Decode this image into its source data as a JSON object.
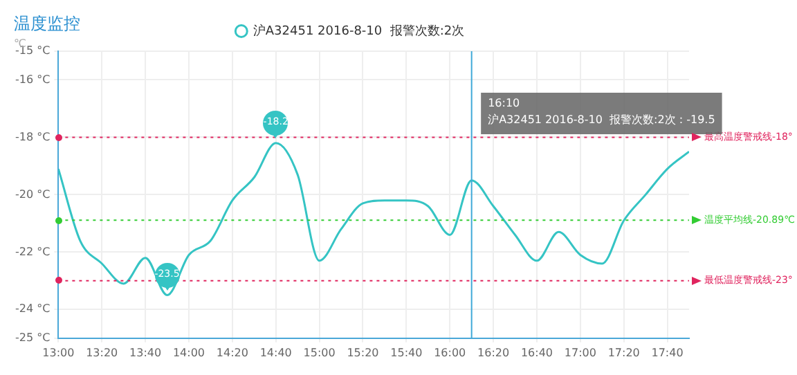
{
  "chart_data": {
    "type": "line",
    "title": "温度监控",
    "ylabel": "℃",
    "x": [
      13,
      13.1667,
      13.3333,
      13.5,
      13.6667,
      13.8333,
      14,
      14.1667,
      14.3333,
      14.5,
      14.6667,
      14.8333,
      15,
      15.1667,
      15.3333,
      15.5,
      15.6667,
      15.8333,
      16,
      16.1667,
      16.3333,
      16.5,
      16.6667,
      16.8333,
      17,
      17.1667,
      17.3333,
      17.5,
      17.6667,
      17.8333
    ],
    "series": [
      {
        "name": "沪A32451 2016-8-10  报警次数:2次",
        "color": "#35c4c4",
        "values": [
          -19.1,
          -21.6,
          -22.4,
          -23.1,
          -22.2,
          -23.5,
          -22.1,
          -21.6,
          -20.2,
          -19.4,
          -18.2,
          -19.3,
          -22.3,
          -21.2,
          -20.3,
          -20.2,
          -20.2,
          -20.4,
          -21.4,
          -19.5,
          -20.4,
          -21.4,
          -22.3,
          -21.3,
          -22.1,
          -22.4,
          -20.9,
          -20.0,
          -19.1,
          -18.5
        ]
      }
    ],
    "xlim": [
      13,
      17.8333
    ],
    "xticks": [
      {
        "value": 13,
        "label": "13:00"
      },
      {
        "value": 13.3333,
        "label": "13:20"
      },
      {
        "value": 13.6667,
        "label": "13:40"
      },
      {
        "value": 14,
        "label": "14:00"
      },
      {
        "value": 14.3333,
        "label": "14:20"
      },
      {
        "value": 14.6667,
        "label": "14:40"
      },
      {
        "value": 15,
        "label": "15:00"
      },
      {
        "value": 15.3333,
        "label": "15:20"
      },
      {
        "value": 15.6667,
        "label": "15:40"
      },
      {
        "value": 16,
        "label": "16:00"
      },
      {
        "value": 16.3333,
        "label": "16:20"
      },
      {
        "value": 16.6667,
        "label": "16:40"
      },
      {
        "value": 17,
        "label": "17:00"
      },
      {
        "value": 17.3333,
        "label": "17:20"
      },
      {
        "value": 17.6667,
        "label": "17:40"
      }
    ],
    "ylim": [
      -25,
      -15
    ],
    "yticks": [
      {
        "value": -25,
        "label": "-25 °C"
      },
      {
        "value": -24,
        "label": "-24 °C"
      },
      {
        "value": -22,
        "label": "-22 °C"
      },
      {
        "value": -20,
        "label": "-20 °C"
      },
      {
        "value": -18,
        "label": "-18 °C"
      },
      {
        "value": -16,
        "label": "-16 °C"
      },
      {
        "value": -15,
        "label": "-15 °C"
      }
    ],
    "ref_lines": [
      {
        "axis": "x",
        "value": 16.1667,
        "color": "#3fa9d8",
        "line_style": "solid"
      },
      {
        "axis": "y",
        "value": -18,
        "label": "最高温度警戒线-18°",
        "color": "#e0245e",
        "line_style": "dotted"
      },
      {
        "axis": "y",
        "value": -20.89,
        "label": "温度平均线-20.89℃",
        "color": "#33cc33",
        "line_style": "dotted"
      },
      {
        "axis": "y",
        "value": -23,
        "label": "最低温度警戒线-23°",
        "color": "#e0245e",
        "line_style": "dotted"
      }
    ],
    "annotations": [
      {
        "text": "-18.2",
        "x": 14.6667,
        "y": -18.2
      },
      {
        "text": "-23.5",
        "x": 13.8333,
        "y": -23.5
      },
      "16:10\n沪A32451 2016-8-10  报警次数:2次 : -19.5"
    ],
    "grid": true,
    "legend": "top",
    "marker": "none",
    "line_style": "solid"
  }
}
